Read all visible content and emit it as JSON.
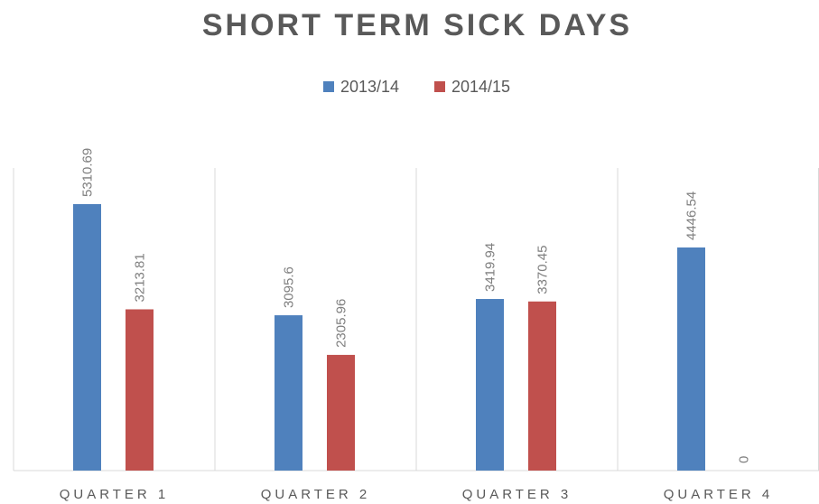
{
  "chart_data": {
    "type": "bar",
    "title": "SHORT TERM SICK DAYS",
    "categories": [
      "QUARTER 1",
      "QUARTER 2",
      "QUARTER 3",
      "QUARTER 4"
    ],
    "series": [
      {
        "name": "2013/14",
        "color": "#4f81bd",
        "values": [
          5310.69,
          3095.6,
          3419.94,
          4446.54
        ]
      },
      {
        "name": "2014/15",
        "color": "#c0504d",
        "values": [
          3213.81,
          2305.96,
          3370.45,
          0
        ]
      }
    ],
    "legend": "top"
  }
}
